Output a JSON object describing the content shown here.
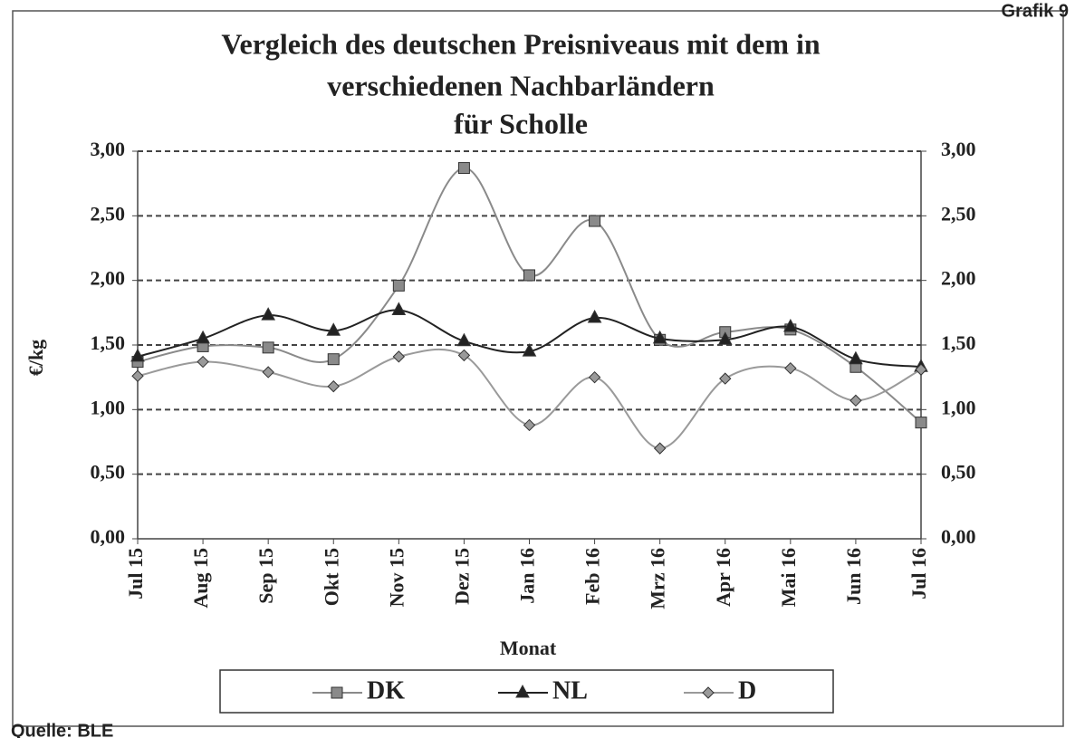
{
  "chart_data": {
    "type": "line",
    "corner_label": "Grafik 9",
    "source": "Quelle: BLE",
    "title": [
      "Vergleich des deutschen Preisniveaus mit dem in",
      "verschiedenen Nachbarländern",
      "für Scholle"
    ],
    "x_label": "Monat",
    "y_label": "€/kg",
    "categories": [
      "Jul 15",
      "Aug 15",
      "Sep 15",
      "Okt 15",
      "Nov 15",
      "Dez 15",
      "Jan 16",
      "Feb 16",
      "Mrz 16",
      "Apr 16",
      "Mai 16",
      "Jun 16",
      "Jul 16"
    ],
    "series": [
      {
        "name": "DK",
        "color": "#8a8a8a",
        "marker": "square",
        "values": [
          1.37,
          1.49,
          1.48,
          1.39,
          1.96,
          2.87,
          2.04,
          2.46,
          1.54,
          1.6,
          1.62,
          1.33,
          0.9
        ]
      },
      {
        "name": "NL",
        "color": "#222222",
        "marker": "triangle",
        "values": [
          1.41,
          1.55,
          1.73,
          1.61,
          1.77,
          1.53,
          1.45,
          1.71,
          1.55,
          1.54,
          1.64,
          1.39,
          1.33
        ]
      },
      {
        "name": "D",
        "color": "#9a9a9a",
        "marker": "diamond",
        "values": [
          1.26,
          1.37,
          1.29,
          1.18,
          1.41,
          1.42,
          0.88,
          1.25,
          0.7,
          1.24,
          1.32,
          1.07,
          1.31
        ]
      }
    ],
    "ylim": [
      0,
      3
    ],
    "yticks": [
      {
        "value": 0,
        "label": "0,00"
      },
      {
        "value": 0.5,
        "label": "0,50"
      },
      {
        "value": 1,
        "label": "1,00"
      },
      {
        "value": 1.5,
        "label": "1,50"
      },
      {
        "value": 2,
        "label": "2,00"
      },
      {
        "value": 2.5,
        "label": "2,50"
      },
      {
        "value": 3,
        "label": "3,00"
      }
    ],
    "y2lim": [
      0,
      3
    ],
    "y2ticks": [
      {
        "value": 0,
        "label": "0,00"
      },
      {
        "value": 0.5,
        "label": "0,50"
      },
      {
        "value": 1,
        "label": "1,00"
      },
      {
        "value": 1.5,
        "label": "1,50"
      },
      {
        "value": 2,
        "label": "2,00"
      },
      {
        "value": 2.5,
        "label": "2,50"
      },
      {
        "value": 3,
        "label": "3,00"
      }
    ],
    "grid": true,
    "legend": "bottom"
  }
}
